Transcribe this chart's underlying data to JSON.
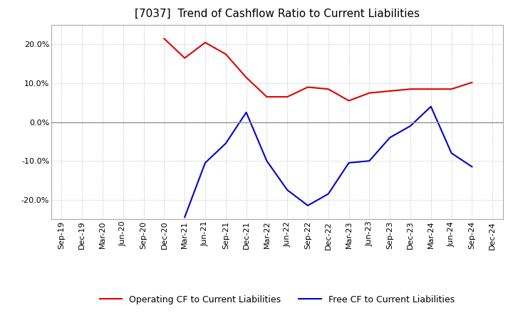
{
  "title": "[7037]  Trend of Cashflow Ratio to Current Liabilities",
  "x_labels": [
    "Sep-19",
    "Dec-19",
    "Mar-20",
    "Jun-20",
    "Sep-20",
    "Dec-20",
    "Mar-21",
    "Jun-21",
    "Sep-21",
    "Dec-21",
    "Mar-22",
    "Jun-22",
    "Sep-22",
    "Dec-22",
    "Mar-23",
    "Jun-23",
    "Sep-23",
    "Dec-23",
    "Mar-24",
    "Jun-24",
    "Sep-24",
    "Dec-24"
  ],
  "operating_cf": [
    null,
    null,
    null,
    null,
    null,
    0.215,
    0.165,
    0.205,
    0.175,
    0.115,
    0.065,
    0.065,
    0.09,
    0.085,
    0.055,
    0.075,
    0.08,
    0.085,
    0.085,
    0.085,
    0.102,
    null
  ],
  "free_cf": [
    null,
    null,
    null,
    null,
    null,
    null,
    -0.245,
    -0.105,
    -0.055,
    0.025,
    -0.1,
    -0.175,
    -0.215,
    -0.185,
    -0.105,
    -0.1,
    -0.04,
    -0.01,
    0.04,
    -0.08,
    -0.115,
    null
  ],
  "ylim": [
    -0.25,
    0.25
  ],
  "yticks": [
    -0.2,
    -0.1,
    0.0,
    0.1,
    0.2
  ],
  "operating_color": "#dd0000",
  "free_color": "#0000cc",
  "background_color": "#ffffff",
  "plot_bg_color": "#ffffff",
  "grid_color": "#b0b0b0",
  "legend_op": "Operating CF to Current Liabilities",
  "legend_free": "Free CF to Current Liabilities",
  "title_fontsize": 11,
  "axis_fontsize": 8,
  "legend_fontsize": 9
}
